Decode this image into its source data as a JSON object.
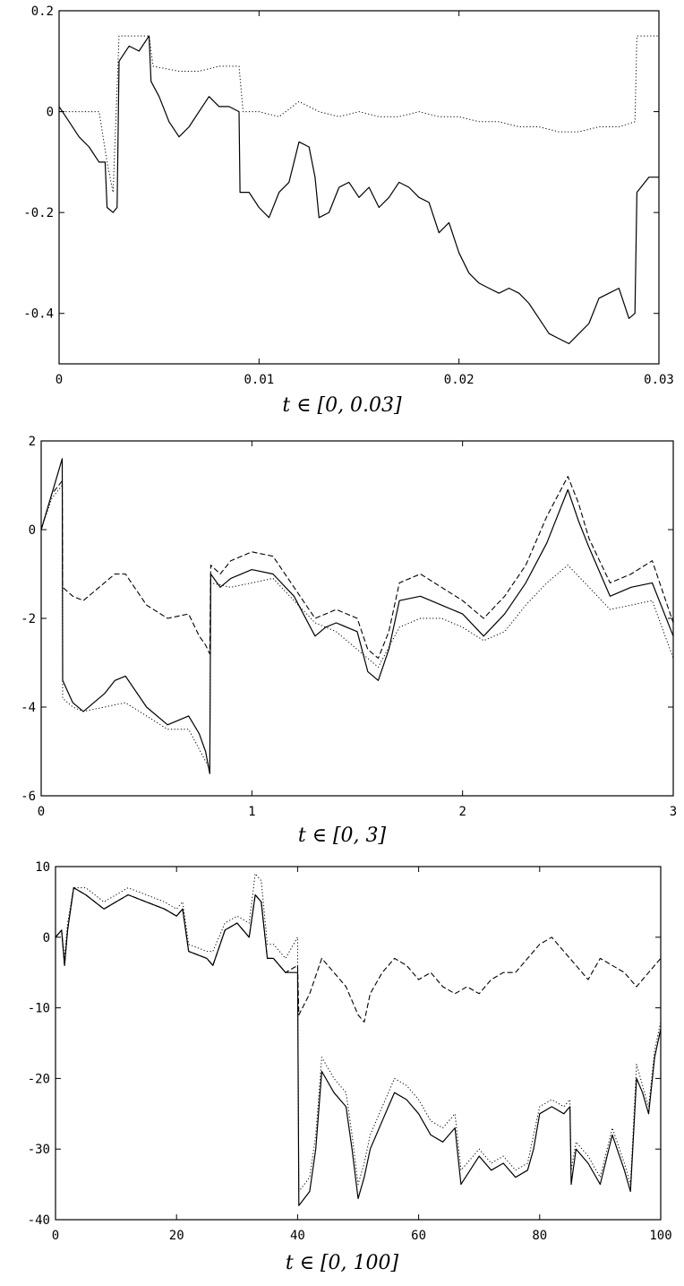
{
  "chart_data": [
    {
      "type": "line",
      "xlabel": "t ∈ [0, 0.03]",
      "xlim": [
        0,
        0.03
      ],
      "ylim": [
        -0.5,
        0.2
      ],
      "grid": false,
      "x_ticks": [
        0,
        0.01,
        0.02,
        0.03
      ],
      "x_tick_labels": [
        "0",
        "0.01",
        "0.02",
        "0.03"
      ],
      "y_ticks": [
        0.2,
        0,
        -0.2,
        -0.4
      ],
      "y_tick_labels": [
        "0.2",
        "0",
        "-0.2",
        "-0.4"
      ],
      "series": [
        {
          "style": "solid",
          "x": [
            0,
            0.0005,
            0.001,
            0.0015,
            0.002,
            0.0023,
            0.0024,
            0.0027,
            0.0029,
            0.003,
            0.0035,
            0.004,
            0.0045,
            0.0046,
            0.005,
            0.0055,
            0.006,
            0.0065,
            0.007,
            0.0075,
            0.008,
            0.0085,
            0.009,
            0.00905,
            0.0095,
            0.01,
            0.0105,
            0.011,
            0.0115,
            0.012,
            0.0125,
            0.0128,
            0.013,
            0.0135,
            0.014,
            0.0145,
            0.015,
            0.0155,
            0.016,
            0.0165,
            0.017,
            0.0175,
            0.018,
            0.0185,
            0.019,
            0.0195,
            0.02,
            0.0205,
            0.021,
            0.0215,
            0.022,
            0.0225,
            0.023,
            0.0235,
            0.024,
            0.0245,
            0.025,
            0.0255,
            0.026,
            0.0265,
            0.027,
            0.0275,
            0.028,
            0.0285,
            0.0288,
            0.0289,
            0.0295,
            0.03
          ],
          "y": [
            0.01,
            -0.02,
            -0.05,
            -0.07,
            -0.1,
            -0.1,
            -0.19,
            -0.2,
            -0.19,
            0.1,
            0.13,
            0.12,
            0.15,
            0.06,
            0.03,
            -0.02,
            -0.05,
            -0.03,
            0.0,
            0.03,
            0.01,
            0.01,
            0.0,
            -0.16,
            -0.16,
            -0.19,
            -0.21,
            -0.16,
            -0.14,
            -0.06,
            -0.07,
            -0.13,
            -0.21,
            -0.2,
            -0.15,
            -0.14,
            -0.17,
            -0.15,
            -0.19,
            -0.17,
            -0.14,
            -0.15,
            -0.17,
            -0.18,
            -0.24,
            -0.22,
            -0.28,
            -0.32,
            -0.34,
            -0.35,
            -0.36,
            -0.35,
            -0.36,
            -0.38,
            -0.41,
            -0.44,
            -0.45,
            -0.46,
            -0.44,
            -0.42,
            -0.37,
            -0.36,
            -0.35,
            -0.41,
            -0.4,
            -0.16,
            -0.13,
            -0.13
          ]
        },
        {
          "style": "dotted",
          "x": [
            0,
            0.002,
            0.0024,
            0.0027,
            0.003,
            0.0035,
            0.0045,
            0.0047,
            0.006,
            0.007,
            0.008,
            0.009,
            0.0092,
            0.01,
            0.011,
            0.012,
            0.013,
            0.014,
            0.015,
            0.016,
            0.017,
            0.018,
            0.019,
            0.02,
            0.021,
            0.022,
            0.023,
            0.024,
            0.025,
            0.026,
            0.027,
            0.028,
            0.0288,
            0.0289,
            0.0295,
            0.03
          ],
          "y": [
            0.0,
            0.0,
            -0.1,
            -0.16,
            0.15,
            0.15,
            0.15,
            0.09,
            0.08,
            0.08,
            0.09,
            0.09,
            0.0,
            0.0,
            -0.01,
            0.02,
            0.0,
            -0.01,
            0.0,
            -0.01,
            -0.01,
            0.0,
            -0.01,
            -0.01,
            -0.02,
            -0.02,
            -0.03,
            -0.03,
            -0.04,
            -0.04,
            -0.03,
            -0.03,
            -0.02,
            0.15,
            0.15,
            0.15
          ]
        }
      ]
    },
    {
      "type": "line",
      "xlabel": "t ∈ [0, 3]",
      "xlim": [
        0,
        3
      ],
      "ylim": [
        -6,
        2
      ],
      "grid": false,
      "x_ticks": [
        0,
        1,
        2,
        3
      ],
      "x_tick_labels": [
        "0",
        "1",
        "2",
        "3"
      ],
      "y_ticks": [
        2,
        0,
        -2,
        -4,
        -6
      ],
      "y_tick_labels": [
        "2",
        "0",
        "-2",
        "-4",
        "-6"
      ],
      "series": [
        {
          "style": "solid",
          "x": [
            0,
            0.05,
            0.1,
            0.102,
            0.15,
            0.2,
            0.3,
            0.35,
            0.4,
            0.5,
            0.6,
            0.7,
            0.75,
            0.78,
            0.8,
            0.805,
            0.85,
            0.9,
            1.0,
            1.1,
            1.2,
            1.3,
            1.35,
            1.4,
            1.5,
            1.55,
            1.6,
            1.65,
            1.7,
            1.8,
            1.9,
            2.0,
            2.1,
            2.2,
            2.3,
            2.4,
            2.5,
            2.55,
            2.6,
            2.7,
            2.8,
            2.9,
            3.0
          ],
          "y": [
            0.0,
            0.8,
            1.6,
            -3.4,
            -3.9,
            -4.1,
            -3.7,
            -3.4,
            -3.3,
            -4.0,
            -4.4,
            -4.2,
            -4.6,
            -5.0,
            -5.5,
            -1.0,
            -1.3,
            -1.1,
            -0.9,
            -1.0,
            -1.5,
            -2.4,
            -2.2,
            -2.1,
            -2.3,
            -3.2,
            -3.4,
            -2.7,
            -1.6,
            -1.5,
            -1.7,
            -1.9,
            -2.4,
            -1.9,
            -1.2,
            -0.3,
            0.9,
            0.2,
            -0.4,
            -1.5,
            -1.3,
            -1.2,
            -2.4
          ]
        },
        {
          "style": "dashed",
          "x": [
            0,
            0.05,
            0.1,
            0.102,
            0.15,
            0.2,
            0.3,
            0.35,
            0.4,
            0.5,
            0.6,
            0.7,
            0.75,
            0.78,
            0.8,
            0.805,
            0.85,
            0.9,
            1.0,
            1.1,
            1.2,
            1.3,
            1.35,
            1.4,
            1.5,
            1.55,
            1.6,
            1.65,
            1.7,
            1.8,
            1.9,
            2.0,
            2.1,
            2.2,
            2.3,
            2.4,
            2.5,
            2.55,
            2.6,
            2.7,
            2.8,
            2.9,
            3.0
          ],
          "y": [
            0.0,
            0.8,
            1.1,
            -1.3,
            -1.5,
            -1.6,
            -1.2,
            -1.0,
            -1.0,
            -1.7,
            -2.0,
            -1.9,
            -2.4,
            -2.6,
            -2.8,
            -0.8,
            -1.0,
            -0.7,
            -0.5,
            -0.6,
            -1.3,
            -2.0,
            -1.9,
            -1.8,
            -2.0,
            -2.7,
            -2.9,
            -2.3,
            -1.2,
            -1.0,
            -1.3,
            -1.6,
            -2.0,
            -1.5,
            -0.8,
            0.3,
            1.2,
            0.6,
            -0.2,
            -1.2,
            -1.0,
            -0.7,
            -2.1
          ]
        },
        {
          "style": "dotted",
          "x": [
            0,
            0.05,
            0.1,
            0.102,
            0.15,
            0.2,
            0.3,
            0.4,
            0.5,
            0.6,
            0.7,
            0.8,
            0.805,
            0.9,
            1.0,
            1.1,
            1.2,
            1.3,
            1.4,
            1.5,
            1.6,
            1.7,
            1.8,
            1.9,
            2.0,
            2.1,
            2.2,
            2.3,
            2.4,
            2.5,
            2.6,
            2.7,
            2.8,
            2.9,
            3.0
          ],
          "y": [
            0.0,
            0.7,
            1.0,
            -3.8,
            -4.0,
            -4.1,
            -4.0,
            -3.9,
            -4.2,
            -4.5,
            -4.5,
            -5.4,
            -1.2,
            -1.3,
            -1.2,
            -1.1,
            -1.6,
            -2.1,
            -2.3,
            -2.7,
            -3.1,
            -2.2,
            -2.0,
            -2.0,
            -2.2,
            -2.5,
            -2.3,
            -1.7,
            -1.2,
            -0.8,
            -1.3,
            -1.8,
            -1.7,
            -1.6,
            -2.9
          ]
        }
      ]
    },
    {
      "type": "line",
      "xlabel": "t ∈ [0, 100]",
      "xlim": [
        0,
        100
      ],
      "ylim": [
        -40,
        10
      ],
      "grid": false,
      "x_ticks": [
        0,
        20,
        40,
        60,
        80,
        100
      ],
      "x_tick_labels": [
        "0",
        "20",
        "40",
        "60",
        "80",
        "100"
      ],
      "y_ticks": [
        10,
        0,
        -10,
        -20,
        -30,
        -40
      ],
      "y_tick_labels": [
        "10",
        "0",
        "-10",
        "-20",
        "-30",
        "-40"
      ],
      "series": [
        {
          "style": "solid",
          "x": [
            0,
            1,
            1.5,
            2,
            3,
            5,
            8,
            10,
            12,
            15,
            18,
            20,
            21,
            22,
            25,
            26,
            28,
            30,
            32,
            33,
            34,
            35,
            36,
            38,
            40,
            40.2,
            42,
            43,
            44,
            46,
            48,
            49,
            50,
            51,
            52,
            54,
            55,
            56,
            58,
            60,
            62,
            64,
            66,
            67,
            70,
            72,
            74,
            76,
            78,
            79,
            80,
            82,
            84,
            85,
            85.2,
            86,
            88,
            90,
            92,
            94,
            95,
            96,
            97,
            98,
            99,
            100
          ],
          "y": [
            0,
            1,
            -4,
            1,
            7,
            6,
            4,
            5,
            6,
            5,
            4,
            3,
            4,
            -2,
            -3,
            -4,
            1,
            2,
            0,
            6,
            5,
            -3,
            -3,
            -5,
            -5,
            -38,
            -36,
            -30,
            -19,
            -22,
            -24,
            -30,
            -37,
            -34,
            -30,
            -26,
            -24,
            -22,
            -23,
            -25,
            -28,
            -29,
            -27,
            -35,
            -31,
            -33,
            -32,
            -34,
            -33,
            -30,
            -25,
            -24,
            -25,
            -24,
            -35,
            -30,
            -32,
            -35,
            -28,
            -33,
            -36,
            -20,
            -22,
            -25,
            -17,
            -13
          ]
        },
        {
          "style": "dashed",
          "x": [
            0,
            1,
            1.5,
            2,
            3,
            5,
            8,
            10,
            12,
            15,
            18,
            20,
            21,
            22,
            25,
            26,
            28,
            30,
            32,
            33,
            34,
            35,
            36,
            38,
            40,
            40.2,
            42,
            44,
            46,
            48,
            50,
            51,
            52,
            54,
            56,
            58,
            60,
            62,
            64,
            66,
            68,
            70,
            72,
            74,
            76,
            78,
            80,
            82,
            84,
            86,
            88,
            90,
            92,
            94,
            96,
            98,
            100
          ],
          "y": [
            0,
            1,
            -4,
            1,
            7,
            6,
            4,
            5,
            6,
            5,
            4,
            3,
            4,
            -2,
            -3,
            -4,
            1,
            2,
            0,
            6,
            5,
            -3,
            -3,
            -5,
            -4,
            -11,
            -8,
            -3,
            -5,
            -7,
            -11,
            -12,
            -8,
            -5,
            -3,
            -4,
            -6,
            -5,
            -7,
            -8,
            -7,
            -8,
            -6,
            -5,
            -5,
            -3,
            -1,
            0,
            -2,
            -4,
            -6,
            -3,
            -4,
            -5,
            -7,
            -5,
            -3
          ]
        },
        {
          "style": "dotted",
          "x": [
            0,
            1,
            1.5,
            2,
            3,
            5,
            8,
            10,
            12,
            15,
            18,
            20,
            21,
            22,
            25,
            26,
            28,
            30,
            32,
            33,
            34,
            35,
            36,
            38,
            40,
            40.2,
            42,
            43,
            44,
            46,
            48,
            49,
            50,
            51,
            52,
            54,
            55,
            56,
            58,
            60,
            62,
            64,
            66,
            67,
            70,
            72,
            74,
            76,
            78,
            79,
            80,
            82,
            84,
            85,
            85.2,
            86,
            88,
            90,
            92,
            94,
            95,
            96,
            97,
            98,
            99,
            100
          ],
          "y": [
            0,
            1,
            -3,
            2,
            7,
            7,
            5,
            6,
            7,
            6,
            5,
            4,
            5,
            -1,
            -2,
            -2,
            2,
            3,
            2,
            9,
            8,
            -1,
            -1,
            -3,
            0,
            -36,
            -34,
            -28,
            -17,
            -20,
            -22,
            -28,
            -35,
            -32,
            -28,
            -24,
            -22,
            -20,
            -21,
            -23,
            -26,
            -27,
            -25,
            -33,
            -30,
            -32,
            -31,
            -33,
            -32,
            -28,
            -24,
            -23,
            -24,
            -23,
            -33,
            -29,
            -31,
            -34,
            -27,
            -32,
            -35,
            -18,
            -21,
            -24,
            -16,
            -12
          ]
        }
      ]
    }
  ]
}
